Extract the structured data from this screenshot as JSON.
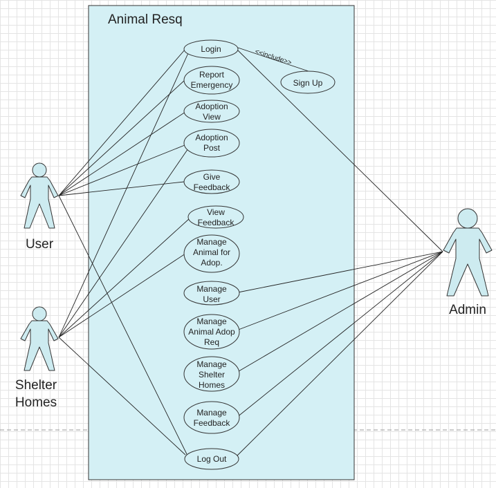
{
  "diagram": {
    "system_title": "Animal Resq",
    "include_label": "<<include>>",
    "colors": {
      "system_fill": "#d4f0f5",
      "ellipse_fill": "#d4f0f5",
      "actor_fill": "#cdebf0",
      "stroke": "#333333"
    },
    "actors": {
      "user": {
        "label": "User"
      },
      "shelter": {
        "label_line1": "Shelter",
        "label_line2": "Homes"
      },
      "admin": {
        "label": "Admin"
      }
    },
    "use_cases": {
      "login": {
        "lines": [
          "Login"
        ]
      },
      "signup": {
        "lines": [
          "Sign Up"
        ]
      },
      "report": {
        "lines": [
          "Report",
          "Emergency"
        ]
      },
      "adoption_view": {
        "lines": [
          "Adoption",
          "View"
        ]
      },
      "adoption_post": {
        "lines": [
          "Adoption",
          "Post"
        ]
      },
      "give_feedback": {
        "lines": [
          "Give",
          "Feedback"
        ]
      },
      "view_feedback": {
        "lines": [
          "View",
          "Feedback"
        ]
      },
      "manage_animal": {
        "lines": [
          "Manage",
          "Animal for",
          "Adop."
        ]
      },
      "manage_user": {
        "lines": [
          "Manage",
          "User"
        ]
      },
      "manage_adop_req": {
        "lines": [
          "Manage",
          "Animal Adop",
          "Req"
        ]
      },
      "manage_shelter": {
        "lines": [
          "Manage",
          "Shelter",
          "Homes"
        ]
      },
      "manage_feedback": {
        "lines": [
          "Manage",
          "Feedback"
        ]
      },
      "logout": {
        "lines": [
          "Log Out"
        ]
      }
    }
  }
}
